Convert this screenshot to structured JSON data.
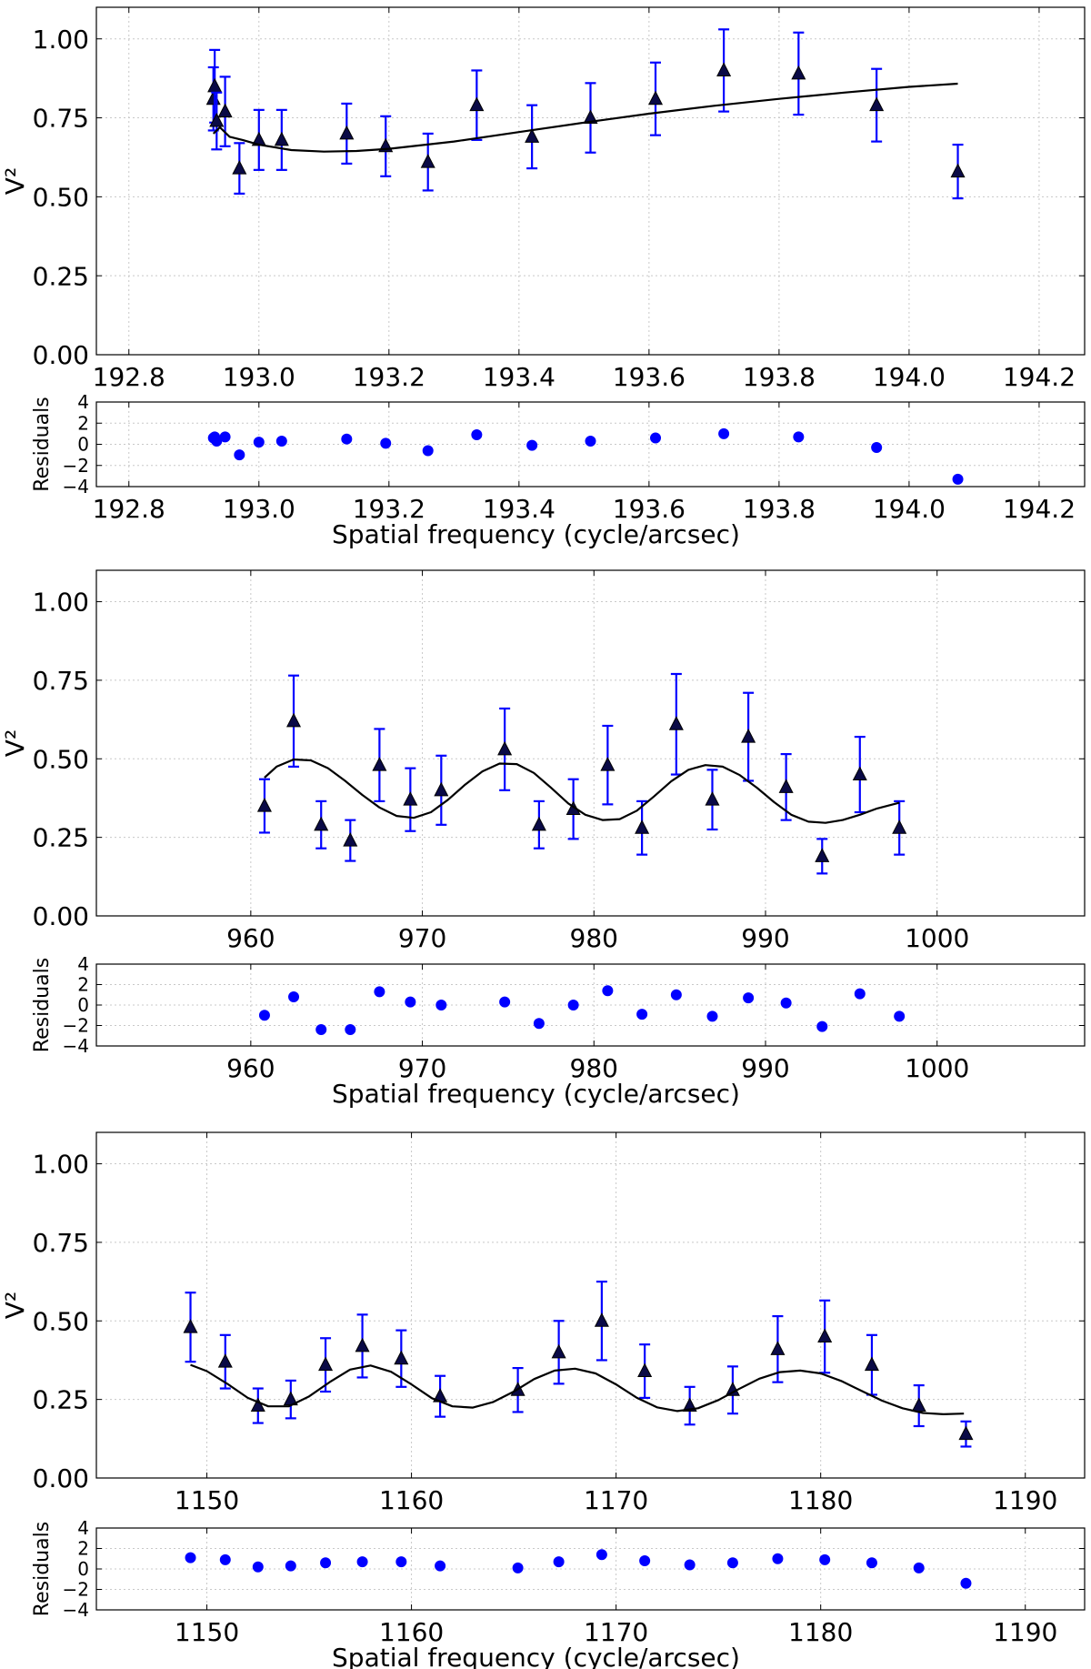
{
  "chart_data": [
    {
      "type": "scatter",
      "title": "",
      "xlabel": "",
      "ylabel": "V²",
      "xlim": [
        192.75,
        194.27
      ],
      "ylim": [
        0.0,
        1.1
      ],
      "grid": true,
      "xticks": [
        192.8,
        193.0,
        193.2,
        193.4,
        193.6,
        193.8,
        194.0,
        194.2
      ],
      "xtick_labels": [
        "192.8",
        "193.0",
        "193.2",
        "193.4",
        "193.6",
        "193.8",
        "194.0",
        "194.2"
      ],
      "yticks": [
        0.0,
        0.25,
        0.5,
        0.75,
        1.0
      ],
      "ytick_labels": [
        "0.00",
        "0.25",
        "0.50",
        "0.75",
        "1.00"
      ],
      "series": [
        {
          "name": "data",
          "marker": "triangle",
          "color": "#0000ff",
          "x": [
            192.93,
            192.932,
            192.935,
            192.948,
            192.97,
            193.0,
            193.035,
            193.135,
            193.195,
            193.26,
            193.335,
            193.42,
            193.51,
            193.61,
            193.715,
            193.83,
            193.95,
            194.075
          ],
          "y": [
            0.81,
            0.85,
            0.74,
            0.77,
            0.59,
            0.68,
            0.68,
            0.7,
            0.66,
            0.61,
            0.79,
            0.69,
            0.75,
            0.81,
            0.9,
            0.89,
            0.79,
            0.58
          ],
          "err": [
            0.1,
            0.115,
            0.09,
            0.11,
            0.08,
            0.095,
            0.095,
            0.095,
            0.095,
            0.09,
            0.11,
            0.1,
            0.11,
            0.115,
            0.13,
            0.13,
            0.115,
            0.085
          ]
        },
        {
          "name": "model",
          "type": "line",
          "color": "#000000",
          "x": [
            192.93,
            192.94,
            192.955,
            192.975,
            193.0,
            193.05,
            193.1,
            193.15,
            193.2,
            193.3,
            193.4,
            193.5,
            193.6,
            193.7,
            193.8,
            193.9,
            194.0,
            194.075
          ],
          "y": [
            0.7,
            0.72,
            0.69,
            0.68,
            0.665,
            0.648,
            0.643,
            0.645,
            0.652,
            0.675,
            0.705,
            0.735,
            0.763,
            0.788,
            0.81,
            0.83,
            0.848,
            0.858
          ]
        }
      ]
    },
    {
      "type": "scatter",
      "title": "",
      "xlabel": "Spatial frequency (cycle/arcsec)",
      "ylabel": "Residuals",
      "xlim": [
        192.75,
        194.27
      ],
      "ylim": [
        -4,
        4
      ],
      "grid": true,
      "xticks": [
        192.8,
        193.0,
        193.2,
        193.4,
        193.6,
        193.8,
        194.0,
        194.2
      ],
      "xtick_labels": [
        "192.8",
        "193.0",
        "193.2",
        "193.4",
        "193.6",
        "193.8",
        "194.0",
        "194.2"
      ],
      "yticks": [
        -4,
        -2,
        0,
        2,
        4
      ],
      "ytick_labels": [
        "−4",
        "−2",
        "0",
        "2",
        "4"
      ],
      "series": [
        {
          "name": "residuals",
          "marker": "circle",
          "color": "#0000ff",
          "x": [
            192.93,
            192.932,
            192.935,
            192.948,
            192.97,
            193.0,
            193.035,
            193.135,
            193.195,
            193.26,
            193.335,
            193.42,
            193.51,
            193.61,
            193.715,
            193.83,
            193.95,
            194.075
          ],
          "y": [
            0.6,
            0.7,
            0.3,
            0.7,
            -1.0,
            0.2,
            0.3,
            0.5,
            0.1,
            -0.6,
            0.9,
            -0.1,
            0.3,
            0.6,
            1.0,
            0.7,
            -0.3,
            -3.3
          ]
        }
      ]
    },
    {
      "type": "scatter",
      "title": "",
      "xlabel": "",
      "ylabel": "V²",
      "xlim": [
        951.0,
        1008.6
      ],
      "ylim": [
        0.0,
        1.1
      ],
      "grid": true,
      "xticks": [
        960,
        970,
        980,
        990,
        1000
      ],
      "xtick_labels": [
        "960",
        "970",
        "980",
        "990",
        "1000"
      ],
      "yticks": [
        0.0,
        0.25,
        0.5,
        0.75,
        1.0
      ],
      "ytick_labels": [
        "0.00",
        "0.25",
        "0.50",
        "0.75",
        "1.00"
      ],
      "series": [
        {
          "name": "data",
          "marker": "triangle",
          "color": "#0000ff",
          "x": [
            960.8,
            962.5,
            964.1,
            965.8,
            967.5,
            969.3,
            971.1,
            974.8,
            976.8,
            978.8,
            980.8,
            982.8,
            984.8,
            986.9,
            989.0,
            991.2,
            993.3,
            995.5,
            997.8
          ],
          "y": [
            0.35,
            0.62,
            0.29,
            0.24,
            0.48,
            0.37,
            0.4,
            0.53,
            0.29,
            0.34,
            0.48,
            0.28,
            0.61,
            0.37,
            0.57,
            0.41,
            0.19,
            0.45,
            0.28
          ],
          "err": [
            0.085,
            0.145,
            0.075,
            0.065,
            0.115,
            0.1,
            0.11,
            0.13,
            0.075,
            0.095,
            0.125,
            0.085,
            0.16,
            0.095,
            0.14,
            0.105,
            0.055,
            0.12,
            0.085
          ]
        },
        {
          "name": "model",
          "type": "line",
          "color": "#000000",
          "x": [
            960.8,
            961.5,
            962.5,
            963.5,
            964.5,
            965.5,
            966.5,
            967.5,
            968.5,
            969.5,
            970.5,
            971.5,
            972.5,
            973.5,
            974.5,
            975.5,
            976.5,
            977.5,
            978.5,
            979.5,
            980.5,
            981.5,
            982.5,
            983.5,
            984.5,
            985.5,
            986.5,
            987.5,
            988.5,
            989.5,
            990.5,
            991.5,
            992.5,
            993.5,
            994.5,
            995.5,
            996.5,
            997.8
          ],
          "y": [
            0.44,
            0.475,
            0.498,
            0.495,
            0.47,
            0.43,
            0.385,
            0.345,
            0.318,
            0.312,
            0.33,
            0.37,
            0.418,
            0.46,
            0.485,
            0.483,
            0.455,
            0.408,
            0.358,
            0.322,
            0.305,
            0.308,
            0.335,
            0.38,
            0.428,
            0.465,
            0.48,
            0.475,
            0.448,
            0.408,
            0.362,
            0.322,
            0.3,
            0.296,
            0.305,
            0.322,
            0.342,
            0.36
          ]
        }
      ]
    },
    {
      "type": "scatter",
      "title": "",
      "xlabel": "Spatial frequency (cycle/arcsec)",
      "ylabel": "Residuals",
      "xlim": [
        951.0,
        1008.6
      ],
      "ylim": [
        -4,
        4
      ],
      "grid": true,
      "xticks": [
        960,
        970,
        980,
        990,
        1000
      ],
      "xtick_labels": [
        "960",
        "970",
        "980",
        "990",
        "1000"
      ],
      "yticks": [
        -4,
        -2,
        0,
        2,
        4
      ],
      "ytick_labels": [
        "−4",
        "−2",
        "0",
        "2",
        "4"
      ],
      "series": [
        {
          "name": "residuals",
          "marker": "circle",
          "color": "#0000ff",
          "x": [
            960.8,
            962.5,
            964.1,
            965.8,
            967.5,
            969.3,
            971.1,
            974.8,
            976.8,
            978.8,
            980.8,
            982.8,
            984.8,
            986.9,
            989.0,
            991.2,
            993.3,
            995.5,
            997.8
          ],
          "y": [
            -1.0,
            0.8,
            -2.4,
            -2.4,
            1.3,
            0.3,
            0.0,
            0.3,
            -1.8,
            0.0,
            1.4,
            -0.9,
            1.0,
            -1.1,
            0.7,
            0.2,
            -2.1,
            1.1,
            -1.1
          ]
        }
      ]
    },
    {
      "type": "scatter",
      "title": "",
      "xlabel": "",
      "ylabel": "V²",
      "xlim": [
        1144.6,
        1192.9
      ],
      "ylim": [
        0.0,
        1.1
      ],
      "grid": true,
      "xticks": [
        1150,
        1160,
        1170,
        1180,
        1190
      ],
      "xtick_labels": [
        "1150",
        "1160",
        "1170",
        "1180",
        "1190"
      ],
      "yticks": [
        0.0,
        0.25,
        0.5,
        0.75,
        1.0
      ],
      "ytick_labels": [
        "0.00",
        "0.25",
        "0.50",
        "0.75",
        "1.00"
      ],
      "series": [
        {
          "name": "data",
          "marker": "triangle",
          "color": "#0000ff",
          "x": [
            1149.2,
            1150.9,
            1152.5,
            1154.1,
            1155.8,
            1157.6,
            1159.5,
            1161.4,
            1165.2,
            1167.2,
            1169.3,
            1171.4,
            1173.6,
            1175.7,
            1177.9,
            1180.2,
            1182.5,
            1184.8,
            1187.1
          ],
          "y": [
            0.48,
            0.37,
            0.23,
            0.25,
            0.36,
            0.42,
            0.38,
            0.26,
            0.28,
            0.4,
            0.5,
            0.34,
            0.23,
            0.28,
            0.41,
            0.45,
            0.36,
            0.23,
            0.14
          ],
          "err": [
            0.11,
            0.085,
            0.055,
            0.06,
            0.085,
            0.1,
            0.09,
            0.065,
            0.07,
            0.1,
            0.125,
            0.085,
            0.06,
            0.075,
            0.105,
            0.115,
            0.095,
            0.065,
            0.04
          ]
        },
        {
          "name": "model",
          "type": "line",
          "color": "#000000",
          "x": [
            1149.2,
            1150.0,
            1151.0,
            1152.0,
            1153.0,
            1154.0,
            1155.0,
            1156.0,
            1157.0,
            1158.0,
            1159.0,
            1160.0,
            1161.0,
            1162.0,
            1163.0,
            1164.0,
            1165.0,
            1166.0,
            1167.0,
            1168.0,
            1169.0,
            1170.0,
            1171.0,
            1172.0,
            1173.0,
            1174.0,
            1175.0,
            1176.0,
            1177.0,
            1178.0,
            1179.0,
            1180.0,
            1181.0,
            1182.0,
            1183.0,
            1184.0,
            1185.0,
            1186.0,
            1187.0
          ],
          "y": [
            0.36,
            0.34,
            0.3,
            0.255,
            0.228,
            0.228,
            0.26,
            0.305,
            0.345,
            0.358,
            0.338,
            0.298,
            0.254,
            0.228,
            0.224,
            0.242,
            0.275,
            0.315,
            0.342,
            0.348,
            0.333,
            0.298,
            0.256,
            0.225,
            0.213,
            0.222,
            0.248,
            0.283,
            0.316,
            0.337,
            0.342,
            0.333,
            0.309,
            0.277,
            0.246,
            0.222,
            0.207,
            0.203,
            0.205
          ]
        }
      ]
    },
    {
      "type": "scatter",
      "title": "",
      "xlabel": "Spatial frequency (cycle/arcsec)",
      "ylabel": "Residuals",
      "xlim": [
        1144.6,
        1192.9
      ],
      "ylim": [
        -4,
        4
      ],
      "grid": true,
      "xticks": [
        1150,
        1160,
        1170,
        1180,
        1190
      ],
      "xtick_labels": [
        "1150",
        "1160",
        "1170",
        "1180",
        "1190"
      ],
      "yticks": [
        -4,
        -2,
        0,
        2,
        4
      ],
      "ytick_labels": [
        "−4",
        "−2",
        "0",
        "2",
        "4"
      ],
      "series": [
        {
          "name": "residuals",
          "marker": "circle",
          "color": "#0000ff",
          "x": [
            1149.2,
            1150.9,
            1152.5,
            1154.1,
            1155.8,
            1157.6,
            1159.5,
            1161.4,
            1165.2,
            1167.2,
            1169.3,
            1171.4,
            1173.6,
            1175.7,
            1177.9,
            1180.2,
            1182.5,
            1184.8,
            1187.1
          ],
          "y": [
            1.1,
            0.9,
            0.2,
            0.3,
            0.6,
            0.7,
            0.7,
            0.3,
            0.1,
            0.7,
            1.4,
            0.8,
            0.4,
            0.6,
            1.0,
            0.9,
            0.6,
            0.1,
            -1.4
          ]
        }
      ]
    }
  ]
}
